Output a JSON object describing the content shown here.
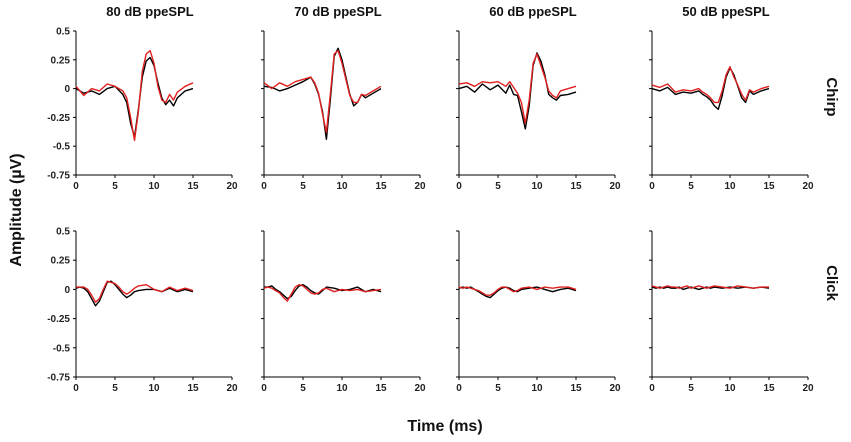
{
  "chart_data": {
    "type": "line",
    "ylabel": "Amplitude (µV)",
    "xlabel": "Time (ms)",
    "columns": [
      "80 dB ppeSPL",
      "70 dB ppeSPL",
      "60 dB ppeSPL",
      "50 dB ppeSPL"
    ],
    "rows": [
      "Chirp",
      "Click"
    ],
    "xlim": [
      0,
      20
    ],
    "ylim": [
      -0.75,
      0.5
    ],
    "x_ticks": [
      0,
      5,
      10,
      15,
      20
    ],
    "y_ticks": [
      -0.75,
      -0.5,
      -0.25,
      0,
      0.25,
      0.5
    ],
    "y_tick_labels": [
      "-0.75",
      "-0.5",
      "-0.25",
      "0",
      "0.25",
      "0.5"
    ],
    "y_tick_columns": [
      0
    ],
    "series_colors": [
      "#000000",
      "#e02020"
    ],
    "panels": [
      {
        "row": "Chirp",
        "column": "80 dB ppeSPL",
        "series": [
          {
            "color": "#000000",
            "x": [
              0,
              1,
              2,
              3,
              4,
              5,
              6,
              6.5,
              7,
              7.5,
              8,
              8.5,
              9,
              9.5,
              10,
              10.5,
              11,
              11.5,
              12,
              12.5,
              13,
              14,
              15
            ],
            "y": [
              0,
              -0.04,
              -0.02,
              -0.05,
              0,
              0.02,
              -0.05,
              -0.12,
              -0.3,
              -0.42,
              -0.18,
              0.1,
              0.24,
              0.27,
              0.2,
              0.05,
              -0.08,
              -0.14,
              -0.1,
              -0.15,
              -0.08,
              -0.02,
              0
            ]
          },
          {
            "color": "#e02020",
            "x": [
              0,
              1,
              2,
              3,
              4,
              5,
              6,
              6.5,
              7,
              7.5,
              8,
              8.5,
              9,
              9.5,
              10,
              10.5,
              11,
              11.5,
              12,
              12.5,
              13,
              14,
              15
            ],
            "y": [
              0.02,
              -0.06,
              0,
              -0.02,
              0.04,
              0.02,
              -0.02,
              -0.08,
              -0.25,
              -0.45,
              -0.2,
              0.15,
              0.3,
              0.33,
              0.22,
              0.02,
              -0.1,
              -0.12,
              -0.05,
              -0.1,
              -0.03,
              0.02,
              0.05
            ]
          }
        ]
      },
      {
        "row": "Chirp",
        "column": "70 dB ppeSPL",
        "series": [
          {
            "color": "#000000",
            "x": [
              0,
              1,
              2,
              3,
              4,
              5,
              6,
              6.5,
              7,
              7.5,
              8,
              8.5,
              9,
              9.5,
              10,
              10.5,
              11,
              11.5,
              12,
              12.5,
              13,
              14,
              15
            ],
            "y": [
              0.02,
              0.01,
              -0.02,
              0,
              0.03,
              0.06,
              0.1,
              0.04,
              -0.05,
              -0.2,
              -0.44,
              -0.1,
              0.28,
              0.35,
              0.25,
              0.1,
              -0.05,
              -0.15,
              -0.12,
              -0.05,
              -0.08,
              -0.04,
              0
            ]
          },
          {
            "color": "#e02020",
            "x": [
              0,
              1,
              2,
              3,
              4,
              5,
              6,
              6.5,
              7,
              7.5,
              8,
              8.5,
              9,
              9.5,
              10,
              10.5,
              11,
              11.5,
              12,
              12.5,
              13,
              14,
              15
            ],
            "y": [
              0.05,
              0,
              0.05,
              0.02,
              0.06,
              0.08,
              0.1,
              0.05,
              -0.04,
              -0.22,
              -0.38,
              -0.05,
              0.3,
              0.33,
              0.22,
              0.08,
              -0.06,
              -0.12,
              -0.12,
              -0.05,
              -0.06,
              -0.02,
              0.02
            ]
          }
        ]
      },
      {
        "row": "Chirp",
        "column": "60 dB ppeSPL",
        "series": [
          {
            "color": "#000000",
            "x": [
              0,
              1,
              2,
              3,
              4,
              5,
              6,
              6.5,
              7,
              7.5,
              8,
              8.5,
              9,
              9.5,
              10,
              10.5,
              11,
              11.5,
              12,
              12.5,
              13,
              14,
              15
            ],
            "y": [
              0,
              0.02,
              -0.03,
              0.04,
              -0.01,
              0.03,
              -0.04,
              0.03,
              -0.05,
              -0.06,
              -0.2,
              -0.35,
              -0.15,
              0.2,
              0.31,
              0.24,
              0.12,
              -0.05,
              -0.08,
              -0.1,
              -0.06,
              -0.05,
              -0.03
            ]
          },
          {
            "color": "#e02020",
            "x": [
              0,
              1,
              2,
              3,
              4,
              5,
              6,
              6.5,
              7,
              7.5,
              8,
              8.5,
              9,
              9.5,
              10,
              10.5,
              11,
              11.5,
              12,
              12.5,
              13,
              14,
              15
            ],
            "y": [
              0.04,
              0.05,
              0.02,
              0.06,
              0.05,
              0.06,
              0.02,
              0.06,
              0.01,
              -0.04,
              -0.12,
              -0.3,
              -0.1,
              0.22,
              0.3,
              0.2,
              0.1,
              -0.02,
              -0.06,
              -0.08,
              -0.02,
              0,
              0.02
            ]
          }
        ]
      },
      {
        "row": "Chirp",
        "column": "50 dB ppeSPL",
        "series": [
          {
            "color": "#000000",
            "x": [
              0,
              1,
              2,
              3,
              4,
              5,
              6,
              6.5,
              7,
              7.5,
              8,
              8.5,
              9,
              9.5,
              10,
              10.5,
              11,
              11.5,
              12,
              12.5,
              13,
              14,
              15
            ],
            "y": [
              0,
              -0.02,
              0.01,
              -0.05,
              -0.03,
              -0.04,
              -0.02,
              -0.05,
              -0.07,
              -0.1,
              -0.15,
              -0.18,
              -0.06,
              0.1,
              0.18,
              0.12,
              0.02,
              -0.08,
              -0.12,
              -0.02,
              -0.05,
              -0.02,
              0
            ]
          },
          {
            "color": "#e02020",
            "x": [
              0,
              1,
              2,
              3,
              4,
              5,
              6,
              6.5,
              7,
              7.5,
              8,
              8.5,
              9,
              9.5,
              10,
              10.5,
              11,
              11.5,
              12,
              12.5,
              13,
              14,
              15
            ],
            "y": [
              0.03,
              0.01,
              0.04,
              -0.03,
              -0.01,
              -0.02,
              0,
              -0.03,
              -0.05,
              -0.08,
              -0.12,
              -0.12,
              -0.02,
              0.12,
              0.19,
              0.1,
              0.03,
              -0.05,
              -0.1,
              -0.01,
              -0.03,
              0,
              0.02
            ]
          }
        ]
      },
      {
        "row": "Click",
        "column": "80 dB ppeSPL",
        "series": [
          {
            "color": "#000000",
            "x": [
              0,
              0.5,
              1,
              1.5,
              2,
              2.5,
              3,
              3.5,
              4,
              4.5,
              5,
              5.5,
              6,
              6.5,
              7,
              7.5,
              8,
              9,
              10,
              11,
              12,
              13,
              14,
              15
            ],
            "y": [
              0.01,
              0.02,
              0.01,
              -0.02,
              -0.08,
              -0.14,
              -0.1,
              -0.02,
              0.06,
              0.07,
              0.04,
              0,
              -0.04,
              -0.07,
              -0.05,
              -0.02,
              -0.01,
              0,
              0,
              -0.02,
              0.01,
              -0.02,
              0,
              -0.02
            ]
          },
          {
            "color": "#e02020",
            "x": [
              0,
              0.5,
              1,
              1.5,
              2,
              2.5,
              3,
              3.5,
              4,
              4.5,
              5,
              5.5,
              6,
              6.5,
              7,
              7.5,
              8,
              9,
              10,
              11,
              12,
              13,
              14,
              15
            ],
            "y": [
              0.02,
              0.02,
              0.02,
              0,
              -0.05,
              -0.11,
              -0.08,
              0,
              0.07,
              0.06,
              0.05,
              0.02,
              -0.02,
              -0.04,
              -0.02,
              0.01,
              0.03,
              0.04,
              0,
              -0.02,
              0.02,
              -0.01,
              0.01,
              -0.01
            ]
          }
        ]
      },
      {
        "row": "Click",
        "column": "70 dB ppeSPL",
        "series": [
          {
            "color": "#000000",
            "x": [
              0,
              0.5,
              1,
              1.5,
              2,
              2.5,
              3,
              3.5,
              4,
              4.5,
              5,
              5.5,
              6,
              6.5,
              7,
              7.5,
              8,
              9,
              10,
              11,
              12,
              13,
              14,
              15
            ],
            "y": [
              0.02,
              0.02,
              0.03,
              0,
              -0.02,
              -0.05,
              -0.08,
              -0.06,
              -0.01,
              0.03,
              0.04,
              0.02,
              -0.01,
              -0.03,
              -0.04,
              -0.01,
              0.02,
              0.01,
              -0.01,
              0,
              0.02,
              -0.02,
              0,
              -0.02
            ]
          },
          {
            "color": "#e02020",
            "x": [
              0,
              0.5,
              1,
              1.5,
              2,
              2.5,
              3,
              3.5,
              4,
              4.5,
              5,
              5.5,
              6,
              6.5,
              7,
              7.5,
              8,
              9,
              10,
              11,
              12,
              13,
              14,
              15
            ],
            "y": [
              0.01,
              0.02,
              0.01,
              -0.01,
              -0.03,
              -0.07,
              -0.1,
              -0.04,
              0.02,
              0.04,
              0.03,
              0,
              -0.03,
              -0.04,
              -0.03,
              0,
              0.01,
              -0.02,
              0,
              -0.01,
              0,
              -0.02,
              -0.01,
              0
            ]
          }
        ]
      },
      {
        "row": "Click",
        "column": "60 dB ppeSPL",
        "series": [
          {
            "color": "#000000",
            "x": [
              0,
              0.5,
              1,
              1.5,
              2,
              2.5,
              3,
              3.5,
              4,
              4.5,
              5,
              5.5,
              6,
              6.5,
              7,
              7.5,
              8,
              9,
              10,
              11,
              12,
              13,
              14,
              15
            ],
            "y": [
              0.01,
              0.02,
              0.01,
              0.02,
              0,
              -0.02,
              -0.04,
              -0.06,
              -0.07,
              -0.04,
              -0.01,
              0.01,
              0.02,
              0.01,
              -0.01,
              -0.02,
              0,
              0.01,
              0.02,
              0,
              -0.02,
              0,
              0.01,
              -0.01
            ]
          },
          {
            "color": "#e02020",
            "x": [
              0,
              0.5,
              1,
              1.5,
              2,
              2.5,
              3,
              3.5,
              4,
              4.5,
              5,
              5.5,
              6,
              6.5,
              7,
              7.5,
              8,
              9,
              10,
              11,
              12,
              13,
              14,
              15
            ],
            "y": [
              0.02,
              0.01,
              0.02,
              0.01,
              0,
              -0.01,
              -0.03,
              -0.05,
              -0.05,
              -0.03,
              0,
              0.02,
              0.02,
              0,
              -0.02,
              -0.01,
              0.01,
              0.02,
              0,
              0.02,
              0.01,
              0.02,
              0.02,
              0
            ]
          }
        ]
      },
      {
        "row": "Click",
        "column": "50 dB ppeSPL",
        "series": [
          {
            "color": "#000000",
            "x": [
              0,
              0.5,
              1,
              1.5,
              2,
              2.5,
              3,
              3.5,
              4,
              4.5,
              5,
              5.5,
              6,
              6.5,
              7,
              7.5,
              8,
              9,
              10,
              11,
              12,
              13,
              14,
              15
            ],
            "y": [
              0.02,
              0.01,
              0.02,
              0.01,
              0.02,
              0.01,
              0.01,
              0.02,
              0,
              0.01,
              0.02,
              0.01,
              0,
              0.01,
              0.02,
              0.01,
              0.02,
              0.01,
              0.02,
              0.01,
              0.02,
              0.01,
              0.02,
              0.01
            ]
          },
          {
            "color": "#e02020",
            "x": [
              0,
              0.5,
              1,
              1.5,
              2,
              2.5,
              3,
              3.5,
              4,
              4.5,
              5,
              5.5,
              6,
              6.5,
              7,
              7.5,
              8,
              9,
              10,
              11,
              12,
              13,
              14,
              15
            ],
            "y": [
              0.03,
              0.02,
              0.01,
              0.02,
              0.03,
              0.02,
              0.02,
              0.01,
              0.02,
              0.03,
              0.01,
              0.02,
              0.03,
              0.02,
              0.01,
              0.02,
              0.03,
              0.02,
              0.01,
              0.03,
              0.02,
              0.01,
              0.02,
              0.02
            ]
          }
        ]
      }
    ]
  }
}
